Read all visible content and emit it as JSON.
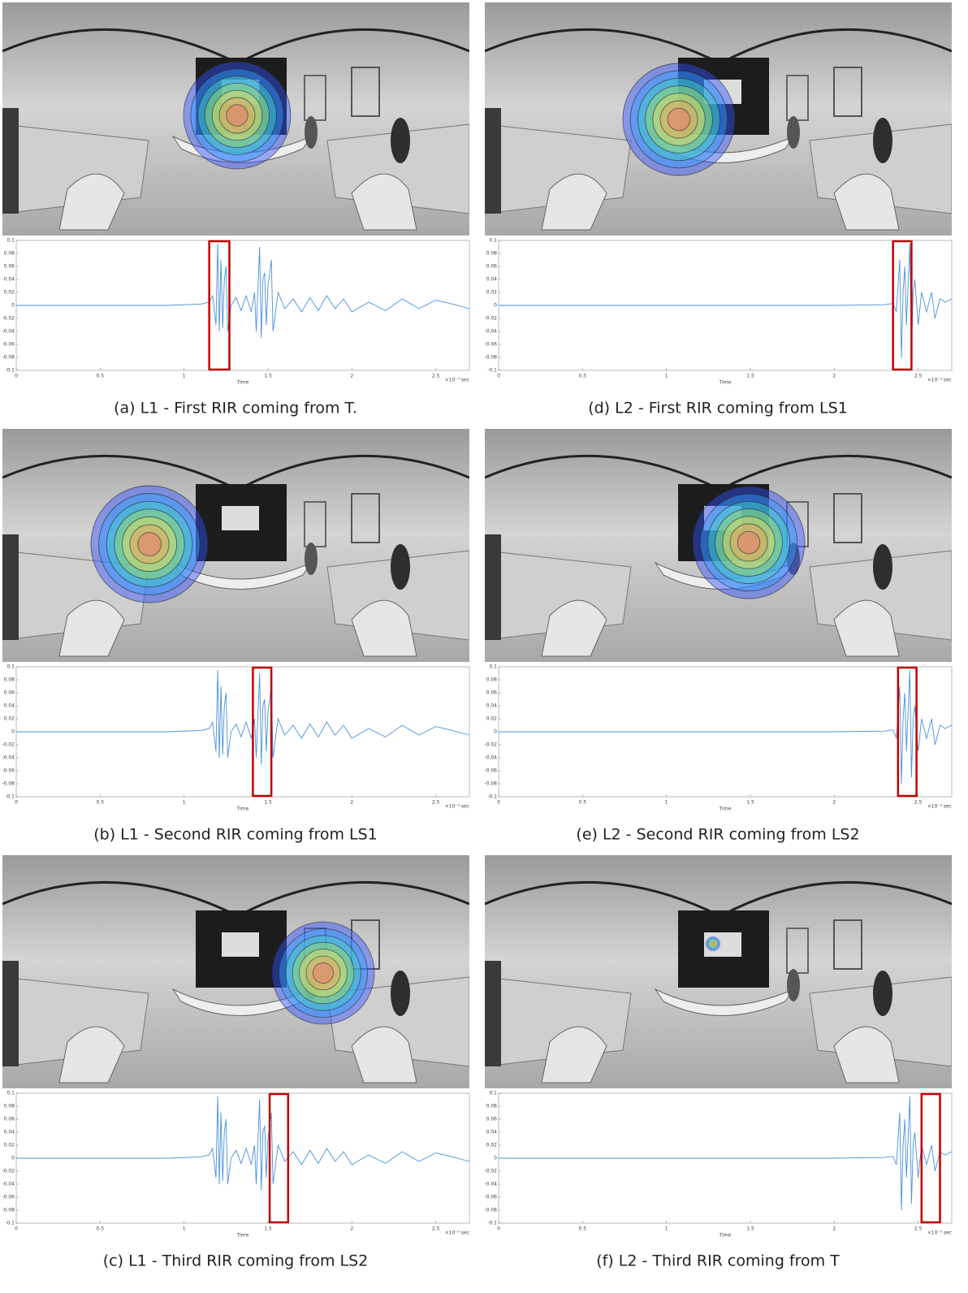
{
  "chart_data": [
    {
      "type": "line",
      "caption": "(a) L1 - First RIR coming from T.",
      "xlabel": "Time",
      "x_unit": "×10⁻⁵ sec",
      "color": "#4a90d9",
      "highlight_color": "#c00000",
      "x": [
        0,
        0.3,
        0.6,
        0.9,
        1.1,
        1.15,
        1.17,
        1.19,
        1.2,
        1.21,
        1.22,
        1.23,
        1.24,
        1.25,
        1.26,
        1.28,
        1.31,
        1.34,
        1.37,
        1.4,
        1.42,
        1.43,
        1.45,
        1.46,
        1.47,
        1.48,
        1.49,
        1.5,
        1.52,
        1.53,
        1.54,
        1.56,
        1.6,
        1.65,
        1.7,
        1.75,
        1.8,
        1.85,
        1.9,
        1.95,
        2.0,
        2.1,
        2.2,
        2.3,
        2.4,
        2.5,
        2.6,
        2.7
      ],
      "values": [
        0,
        0,
        0,
        0,
        0.002,
        0.005,
        0.015,
        -0.03,
        0.095,
        -0.04,
        0.07,
        -0.035,
        0.04,
        0.06,
        -0.04,
        0.0,
        0.012,
        -0.008,
        0.015,
        -0.01,
        0.02,
        -0.04,
        0.09,
        -0.05,
        0.04,
        0.05,
        -0.03,
        0.03,
        0.07,
        -0.04,
        -0.02,
        0.02,
        -0.005,
        0.01,
        -0.01,
        0.012,
        -0.008,
        0.015,
        -0.005,
        0.01,
        -0.01,
        0.005,
        -0.008,
        0.01,
        -0.005,
        0.008,
        0.002,
        -0.005
      ],
      "highlight": [
        1.15,
        1.27
      ],
      "xlim": [
        0,
        2.7
      ],
      "xticks": [
        0,
        0.5,
        1,
        1.5,
        2,
        2.5
      ],
      "ylim": [
        -0.1,
        0.1
      ],
      "yticks": [
        0.1,
        0.08,
        0.06,
        0.04,
        0.02,
        0,
        -0.02,
        -0.04,
        -0.06,
        -0.08,
        -0.1
      ]
    },
    {
      "type": "line",
      "caption": "(b) L1 - Second RIR coming from LS1",
      "xlabel": "Time",
      "x_unit": "×10⁻⁵ sec",
      "color": "#4a90d9",
      "highlight_color": "#c00000",
      "x": [
        0,
        0.3,
        0.6,
        0.9,
        1.1,
        1.15,
        1.17,
        1.19,
        1.2,
        1.21,
        1.22,
        1.23,
        1.24,
        1.25,
        1.26,
        1.28,
        1.31,
        1.34,
        1.37,
        1.4,
        1.42,
        1.43,
        1.45,
        1.46,
        1.47,
        1.48,
        1.49,
        1.5,
        1.52,
        1.53,
        1.54,
        1.56,
        1.6,
        1.65,
        1.7,
        1.75,
        1.8,
        1.85,
        1.9,
        1.95,
        2.0,
        2.1,
        2.2,
        2.3,
        2.4,
        2.5,
        2.6,
        2.7
      ],
      "values": [
        0,
        0,
        0,
        0,
        0.002,
        0.005,
        0.015,
        -0.03,
        0.095,
        -0.04,
        0.07,
        -0.035,
        0.04,
        0.06,
        -0.04,
        0.0,
        0.012,
        -0.008,
        0.015,
        -0.01,
        0.02,
        -0.04,
        0.09,
        -0.05,
        0.04,
        0.05,
        -0.03,
        0.03,
        0.07,
        -0.04,
        -0.02,
        0.02,
        -0.005,
        0.01,
        -0.01,
        0.012,
        -0.008,
        0.015,
        -0.005,
        0.01,
        -0.01,
        0.005,
        -0.008,
        0.01,
        -0.005,
        0.008,
        0.002,
        -0.005
      ],
      "highlight": [
        1.41,
        1.52
      ],
      "xlim": [
        0,
        2.7
      ],
      "xticks": [
        0,
        0.5,
        1,
        1.5,
        2,
        2.5
      ],
      "ylim": [
        -0.1,
        0.1
      ],
      "yticks": [
        0.1,
        0.08,
        0.06,
        0.04,
        0.02,
        0,
        -0.02,
        -0.04,
        -0.06,
        -0.08,
        -0.1
      ]
    },
    {
      "type": "line",
      "caption": "(c) L1 - Third RIR coming from LS2",
      "xlabel": "Time",
      "x_unit": "×10⁻⁵ sec",
      "color": "#4a90d9",
      "highlight_color": "#c00000",
      "x": [
        0,
        0.3,
        0.6,
        0.9,
        1.1,
        1.15,
        1.17,
        1.19,
        1.2,
        1.21,
        1.22,
        1.23,
        1.24,
        1.25,
        1.26,
        1.28,
        1.31,
        1.34,
        1.37,
        1.4,
        1.42,
        1.43,
        1.45,
        1.46,
        1.47,
        1.48,
        1.49,
        1.5,
        1.52,
        1.53,
        1.54,
        1.56,
        1.6,
        1.65,
        1.7,
        1.75,
        1.8,
        1.85,
        1.9,
        1.95,
        2.0,
        2.1,
        2.2,
        2.3,
        2.4,
        2.5,
        2.6,
        2.7
      ],
      "values": [
        0,
        0,
        0,
        0,
        0.002,
        0.005,
        0.015,
        -0.03,
        0.095,
        -0.04,
        0.07,
        -0.035,
        0.04,
        0.06,
        -0.04,
        0.0,
        0.012,
        -0.008,
        0.015,
        -0.01,
        0.02,
        -0.04,
        0.09,
        -0.05,
        0.04,
        0.05,
        -0.03,
        0.03,
        0.07,
        -0.04,
        -0.02,
        0.02,
        -0.005,
        0.01,
        -0.01,
        0.012,
        -0.008,
        0.015,
        -0.005,
        0.01,
        -0.01,
        0.005,
        -0.008,
        0.01,
        -0.005,
        0.008,
        0.002,
        -0.005
      ],
      "highlight": [
        1.51,
        1.62
      ],
      "xlim": [
        0,
        2.7
      ],
      "xticks": [
        0,
        0.5,
        1,
        1.5,
        2,
        2.5
      ],
      "ylim": [
        -0.1,
        0.1
      ],
      "yticks": [
        0.1,
        0.08,
        0.06,
        0.04,
        0.02,
        0,
        -0.02,
        -0.04,
        -0.06,
        -0.08,
        -0.1
      ]
    },
    {
      "type": "line",
      "caption": "(d) L2 - First RIR coming from LS1",
      "xlabel": "Time",
      "x_unit": "×10⁻⁵ sec",
      "color": "#4a90d9",
      "highlight_color": "#c00000",
      "x": [
        0,
        0.5,
        1,
        1.5,
        2,
        2.3,
        2.35,
        2.37,
        2.39,
        2.4,
        2.41,
        2.42,
        2.43,
        2.44,
        2.45,
        2.46,
        2.47,
        2.48,
        2.5,
        2.52,
        2.55,
        2.58,
        2.6,
        2.63,
        2.66,
        2.7
      ],
      "values": [
        0,
        0,
        0,
        0,
        0,
        0.001,
        0.003,
        -0.01,
        0.07,
        -0.08,
        0.02,
        0.06,
        -0.03,
        0.03,
        0.095,
        -0.07,
        0.02,
        0.04,
        -0.03,
        0.02,
        -0.01,
        0.02,
        -0.02,
        0.01,
        0.005,
        0.01
      ],
      "highlight": [
        2.35,
        2.46
      ],
      "xlim": [
        0,
        2.7
      ],
      "xticks": [
        0,
        0.5,
        1,
        1.5,
        2,
        2.5
      ],
      "ylim": [
        -0.1,
        0.1
      ],
      "yticks": [
        0.1,
        0.08,
        0.06,
        0.04,
        0.02,
        0,
        -0.02,
        -0.04,
        -0.06,
        -0.08,
        -0.1
      ]
    },
    {
      "type": "line",
      "caption": "(e) L2 - Second RIR coming from LS2",
      "xlabel": "Time",
      "x_unit": "×10⁻⁵ sec",
      "color": "#4a90d9",
      "highlight_color": "#c00000",
      "x": [
        0,
        0.5,
        1,
        1.5,
        2,
        2.3,
        2.35,
        2.37,
        2.39,
        2.4,
        2.41,
        2.42,
        2.43,
        2.44,
        2.45,
        2.46,
        2.47,
        2.48,
        2.5,
        2.52,
        2.55,
        2.58,
        2.6,
        2.63,
        2.66,
        2.7
      ],
      "values": [
        0,
        0,
        0,
        0,
        0,
        0.001,
        0.003,
        -0.01,
        0.07,
        -0.08,
        0.02,
        0.06,
        -0.03,
        0.03,
        0.095,
        -0.07,
        0.02,
        0.04,
        -0.03,
        0.02,
        -0.01,
        0.02,
        -0.02,
        0.01,
        0.005,
        0.01
      ],
      "highlight": [
        2.38,
        2.49
      ],
      "xlim": [
        0,
        2.7
      ],
      "xticks": [
        0,
        0.5,
        1,
        1.5,
        2,
        2.5
      ],
      "ylim": [
        -0.1,
        0.1
      ],
      "yticks": [
        0.1,
        0.08,
        0.06,
        0.04,
        0.02,
        0,
        -0.02,
        -0.04,
        -0.06,
        -0.08,
        -0.1
      ]
    },
    {
      "type": "line",
      "caption": "(f) L2 - Third RIR coming from T",
      "xlabel": "Time",
      "x_unit": "×10⁻⁵ sec",
      "color": "#4a90d9",
      "highlight_color": "#c00000",
      "x": [
        0,
        0.5,
        1,
        1.5,
        2,
        2.3,
        2.35,
        2.37,
        2.39,
        2.4,
        2.41,
        2.42,
        2.43,
        2.44,
        2.45,
        2.46,
        2.47,
        2.48,
        2.5,
        2.52,
        2.55,
        2.58,
        2.6,
        2.63,
        2.66,
        2.7
      ],
      "values": [
        0,
        0,
        0,
        0,
        0,
        0.001,
        0.003,
        -0.01,
        0.07,
        -0.08,
        0.02,
        0.06,
        -0.03,
        0.03,
        0.095,
        -0.07,
        0.02,
        0.04,
        -0.03,
        0.02,
        -0.01,
        0.02,
        -0.02,
        0.01,
        0.005,
        0.01
      ],
      "highlight": [
        2.52,
        2.63
      ],
      "xlim": [
        0,
        2.7
      ],
      "xticks": [
        0,
        0.5,
        1,
        1.5,
        2,
        2.5
      ],
      "ylim": [
        -0.1,
        0.1
      ],
      "yticks": [
        0.1,
        0.08,
        0.06,
        0.04,
        0.02,
        0,
        -0.02,
        -0.04,
        -0.06,
        -0.08,
        -0.1
      ]
    }
  ]
}
